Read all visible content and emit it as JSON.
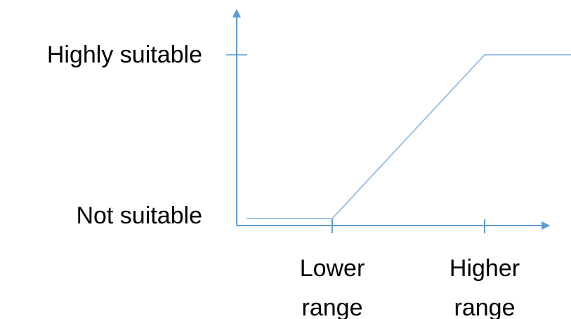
{
  "chart_data": {
    "type": "line",
    "categories": [
      "Lower range",
      "Higher range"
    ],
    "y_categories": [
      "Not suitable",
      "Highly suitable"
    ],
    "series": [
      {
        "x": [
          0,
          1,
          2,
          2.55
        ],
        "y": [
          0,
          0,
          1,
          1
        ]
      }
    ],
    "xlim": [
      -0.62,
      2.55
    ],
    "ylim": [
      -0.04,
      1.2
    ],
    "x_tick_labels": [
      {
        "x": 1,
        "lines": [
          "Lower",
          "range"
        ]
      },
      {
        "x": 2,
        "lines": [
          "Higher",
          "range"
        ]
      }
    ],
    "y_tick_labels": [
      {
        "y": 0,
        "text": "Not suitable"
      },
      {
        "y": 1,
        "text": "Highly suitable"
      }
    ],
    "grid": false,
    "colors": {
      "axis": "#5b9bd5",
      "line": "#9dc3e6",
      "text": "#000000"
    }
  }
}
